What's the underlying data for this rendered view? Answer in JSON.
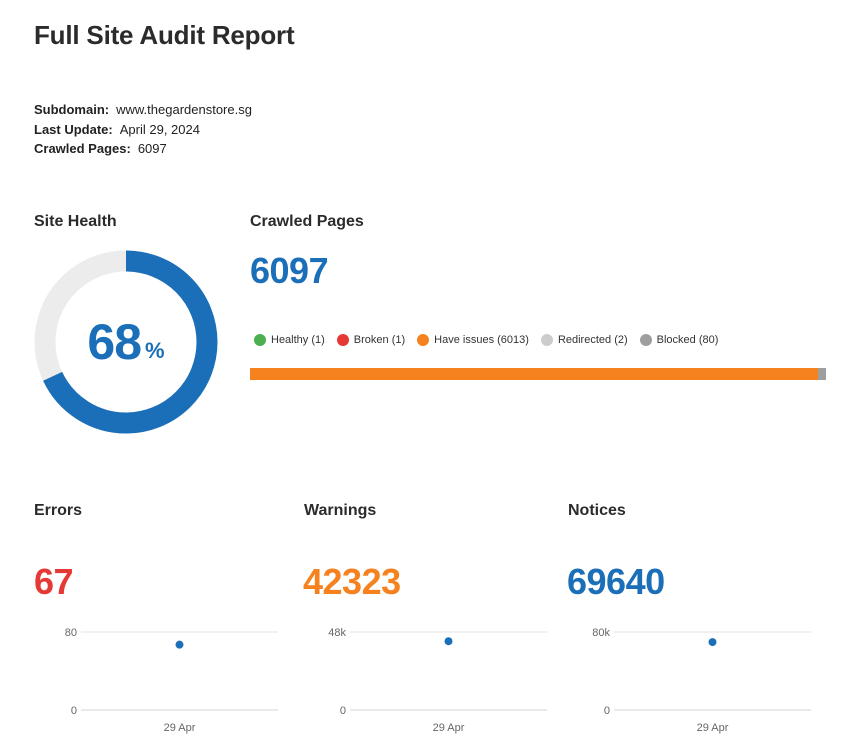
{
  "report": {
    "title": "Full Site Audit Report",
    "subdomain_label": "Subdomain:",
    "subdomain": "www.thegardenstore.sg",
    "last_update_label": "Last Update:",
    "last_update": "April 29, 2024",
    "crawled_pages_label": "Crawled Pages:",
    "crawled_pages": "6097"
  },
  "site_health": {
    "label": "Site Health",
    "value": "68",
    "percent_symbol": "%",
    "fraction": 0.68,
    "colors": {
      "fill": "#1a6fb8",
      "track": "#ececec"
    }
  },
  "crawled": {
    "label": "Crawled Pages",
    "total": "6097",
    "legend": [
      {
        "label": "Healthy (1)",
        "color": "#4caf50",
        "count": 1
      },
      {
        "label": "Broken (1)",
        "color": "#e53935",
        "count": 1
      },
      {
        "label": "Have issues (6013)",
        "color": "#f5821f",
        "count": 6013
      },
      {
        "label": "Redirected (2)",
        "color": "#cccccc",
        "count": 2
      },
      {
        "label": "Blocked (80)",
        "color": "#9e9e9e",
        "count": 80
      }
    ]
  },
  "metrics": [
    {
      "label": "Errors",
      "value": "67",
      "color": "#e53935"
    },
    {
      "label": "Warnings",
      "value": "42323",
      "color": "#f5821f"
    },
    {
      "label": "Notices",
      "value": "69640",
      "color": "#1a6fb8"
    }
  ],
  "chart_data": [
    {
      "type": "scatter",
      "x": [
        "29 Apr"
      ],
      "values": [
        67
      ],
      "ylim": [
        0,
        80
      ],
      "yticks": [
        "0",
        "80"
      ],
      "xlabel": "",
      "ylabel": "",
      "grid": true
    },
    {
      "type": "scatter",
      "x": [
        "29 Apr"
      ],
      "values": [
        42323
      ],
      "ylim": [
        0,
        48000
      ],
      "yticks": [
        "0",
        "48k"
      ],
      "xlabel": "",
      "ylabel": "",
      "grid": true
    },
    {
      "type": "scatter",
      "x": [
        "29 Apr"
      ],
      "values": [
        69640
      ],
      "ylim": [
        0,
        80000
      ],
      "yticks": [
        "0",
        "80k"
      ],
      "xlabel": "",
      "ylabel": "",
      "grid": true
    }
  ]
}
